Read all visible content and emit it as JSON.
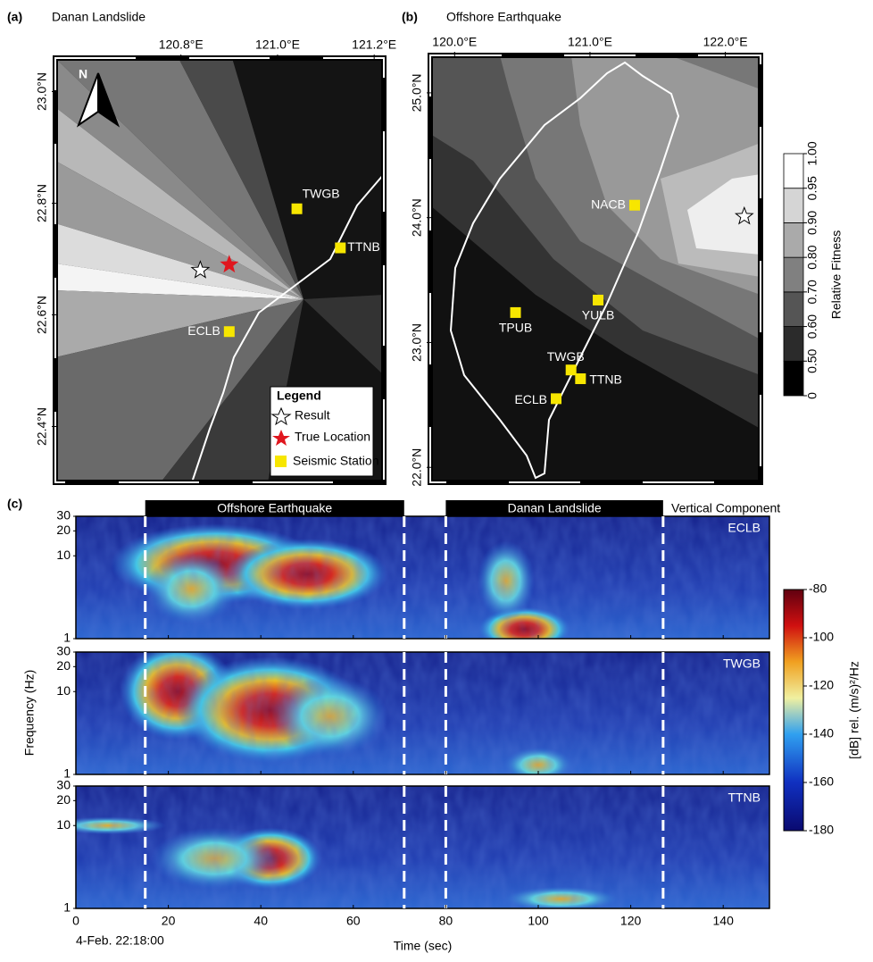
{
  "panels": [
    {
      "label": "(a)",
      "title": "Danan Landslide",
      "xlim": [
        120.54,
        121.22
      ],
      "ylim": [
        22.3,
        23.06
      ],
      "xticks": [
        {
          "value": 120.8,
          "label": "120.8°E"
        },
        {
          "value": 121.0,
          "label": "121.0°E"
        },
        {
          "value": 121.2,
          "label": "121.2°E"
        }
      ],
      "yticks": [
        {
          "value": 22.4,
          "label": "22.4°N"
        },
        {
          "value": 22.6,
          "label": "22.6°N"
        },
        {
          "value": 22.8,
          "label": "22.8°N"
        },
        {
          "value": 23.0,
          "label": "23.0°N"
        }
      ],
      "north": "N",
      "stations": [
        {
          "name": "TWGB",
          "lon": 121.04,
          "lat": 22.79
        },
        {
          "name": "TTNB",
          "lon": 121.13,
          "lat": 22.72
        },
        {
          "name": "ECLB",
          "lon": 120.9,
          "lat": 22.57
        }
      ],
      "result": {
        "lon": 120.84,
        "lat": 22.68
      },
      "true_location": {
        "lon": 120.9,
        "lat": 22.69
      },
      "legend": {
        "title": "Legend",
        "result": "Result",
        "true_location": "True Location",
        "station": "Seismic Station"
      }
    },
    {
      "label": "(b)",
      "title": "Offshore Earthquake",
      "xlim": [
        119.82,
        122.26
      ],
      "ylim": [
        21.88,
        25.3
      ],
      "xticks": [
        {
          "value": 120.0,
          "label": "120.0°E"
        },
        {
          "value": 121.0,
          "label": "121.0°E"
        },
        {
          "value": 122.0,
          "label": "122.0°E"
        }
      ],
      "yticks": [
        {
          "value": 22.0,
          "label": "22.0°N"
        },
        {
          "value": 23.0,
          "label": "23.0°N"
        },
        {
          "value": 24.0,
          "label": "24.0°N"
        },
        {
          "value": 25.0,
          "label": "25.0°N"
        }
      ],
      "stations": [
        {
          "name": "NACB",
          "lon": 121.33,
          "lat": 24.1
        },
        {
          "name": "YULB",
          "lon": 121.06,
          "lat": 23.34
        },
        {
          "name": "TPUB",
          "lon": 120.45,
          "lat": 23.24
        },
        {
          "name": "TWGB",
          "lon": 120.86,
          "lat": 22.78
        },
        {
          "name": "TTNB",
          "lon": 120.93,
          "lat": 22.71
        },
        {
          "name": "ECLB",
          "lon": 120.75,
          "lat": 22.55
        }
      ],
      "result": {
        "lon": 122.14,
        "lat": 24.01
      },
      "colorbar": {
        "label": "Relative Fitness",
        "ticks": [
          0,
          {
            "value": 0.5,
            "label": "0.50"
          },
          {
            "value": 0.6,
            "label": "0.60"
          },
          {
            "value": 0.7,
            "label": "0.70"
          },
          {
            "value": 0.8,
            "label": "0.80"
          },
          {
            "value": 0.9,
            "label": "0.90"
          },
          0.95,
          {
            "value": 1,
            "label": "1.00"
          }
        ]
      }
    }
  ],
  "spectrograms": {
    "label": "(c)",
    "xlim": [
      0,
      150
    ],
    "xticks": [
      0,
      20,
      40,
      60,
      80,
      100,
      120,
      140
    ],
    "ylim": [
      1,
      30
    ],
    "yticks": [
      1,
      10,
      20,
      30
    ],
    "log_y": true,
    "x_label": "Time (sec)",
    "start_time": "4-Feb. 22:18:00",
    "y_label": "Frequency (Hz)",
    "component": "Vertical Component",
    "windows": [
      {
        "name": "Offshore Earthquake",
        "start": 15,
        "end": 71
      },
      {
        "name": "Danan Landslide",
        "start": 80,
        "end": 127
      }
    ],
    "stations": [
      "ECLB",
      "TWGB",
      "TTNB"
    ],
    "colorbar": {
      "label": "[dB] rel. (m/s)²/Hz",
      "lim": [
        -180,
        -80
      ],
      "ticks": [
        -180,
        -160,
        -140,
        -120,
        -100,
        -80
      ]
    }
  }
}
